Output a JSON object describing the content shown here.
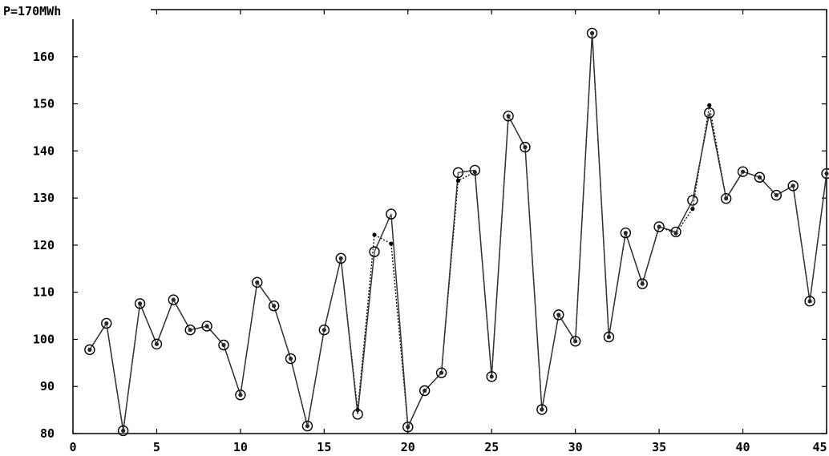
{
  "chart_data": {
    "type": "line",
    "title": "",
    "xlabel": "",
    "ylabel": "",
    "axis_unit_label": "P=170MWh",
    "xlim": [
      0,
      45
    ],
    "ylim": [
      80,
      170
    ],
    "x_ticks": [
      0,
      5,
      10,
      15,
      20,
      25,
      30,
      35,
      40,
      45
    ],
    "x_tick_labels": [
      "0",
      "5",
      "10",
      "15",
      "20",
      "25",
      "30",
      "35",
      "40",
      "45."
    ],
    "y_ticks": [
      80,
      90,
      100,
      110,
      120,
      130,
      140,
      150,
      160
    ],
    "y_tick_labels": [
      "80",
      "90",
      "100",
      "110",
      "120",
      "130",
      "140",
      "150",
      "160"
    ],
    "grid": false,
    "colors": {
      "line": "#333333",
      "marker": "#000000",
      "background": "#ffffff"
    },
    "series": [
      {
        "style": "solid-circle-markers",
        "x": [
          1,
          2,
          3,
          4,
          5,
          6,
          7,
          8,
          9,
          10,
          11,
          12,
          13,
          14,
          15,
          16,
          17,
          18,
          19,
          20,
          21,
          22,
          23,
          24,
          25,
          26,
          27,
          28,
          29,
          30,
          31,
          32,
          33,
          34,
          35,
          36,
          37,
          38,
          39,
          40,
          41,
          42,
          43,
          44,
          45
        ],
        "values": [
          97.8,
          103.4,
          80.6,
          107.6,
          99.0,
          108.4,
          102.0,
          102.8,
          98.8,
          88.2,
          112.1,
          107.1,
          95.9,
          81.6,
          102.0,
          117.2,
          84.1,
          118.6,
          126.6,
          81.4,
          89.1,
          92.9,
          135.4,
          135.9,
          92.1,
          147.4,
          140.8,
          85.1,
          105.2,
          99.6,
          165.0,
          100.5,
          122.6,
          111.8,
          123.9,
          122.8,
          129.5,
          148.1,
          129.9,
          135.6,
          134.4,
          130.6,
          132.6,
          108.1,
          135.2
        ]
      },
      {
        "style": "dotted-dot-markers",
        "x": [
          1,
          2,
          3,
          4,
          5,
          6,
          7,
          8,
          9,
          10,
          11,
          12,
          13,
          14,
          15,
          16,
          17,
          18,
          19,
          20,
          21,
          22,
          23,
          24,
          25,
          26,
          27,
          28,
          29,
          30,
          31,
          32,
          33,
          34,
          35,
          36,
          37,
          38,
          39,
          40,
          41,
          42,
          43,
          44,
          45
        ],
        "values": [
          97.8,
          103.4,
          80.6,
          107.6,
          99.0,
          108.4,
          102.0,
          102.8,
          98.8,
          88.2,
          112.1,
          107.1,
          95.9,
          81.6,
          102.0,
          117.2,
          85.0,
          122.2,
          120.3,
          81.4,
          89.1,
          92.9,
          133.7,
          135.5,
          92.1,
          147.4,
          140.8,
          85.1,
          105.2,
          99.6,
          165.0,
          100.5,
          122.6,
          111.8,
          123.9,
          122.5,
          127.7,
          149.7,
          129.9,
          135.6,
          134.4,
          130.6,
          132.6,
          108.1,
          135.2
        ]
      }
    ]
  }
}
